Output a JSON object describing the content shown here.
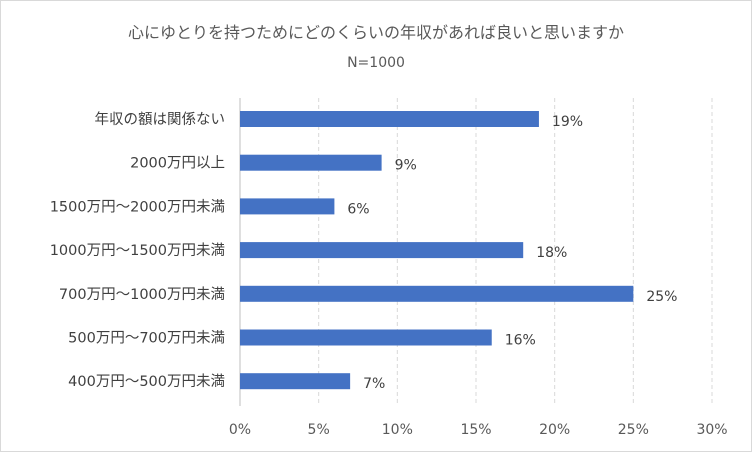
{
  "chart_data": {
    "type": "bar",
    "orientation": "horizontal",
    "title": "心にゆとりを持つためにどのくらいの年収があれば良いと思いますか",
    "subtitle": "N=1000",
    "categories": [
      "年収の額は関係ない",
      "2000万円以上",
      "1500万円～2000万円未満",
      "1000万円～1500万円未満",
      "700万円～1000万円未満",
      "500万円～700万円未満",
      "400万円～500万円未満"
    ],
    "values": [
      19,
      9,
      6,
      18,
      25,
      16,
      7
    ],
    "value_labels": [
      "19%",
      "9%",
      "6%",
      "18%",
      "25%",
      "16%",
      "7%"
    ],
    "xlim": [
      0,
      30
    ],
    "x_ticks": [
      0,
      5,
      10,
      15,
      20,
      25,
      30
    ],
    "x_tick_labels": [
      "0%",
      "5%",
      "10%",
      "15%",
      "20%",
      "25%",
      "30%"
    ],
    "xlabel": "",
    "ylabel": "",
    "grid": "vertical",
    "legend": "none",
    "bar_color": "#4472c4"
  }
}
